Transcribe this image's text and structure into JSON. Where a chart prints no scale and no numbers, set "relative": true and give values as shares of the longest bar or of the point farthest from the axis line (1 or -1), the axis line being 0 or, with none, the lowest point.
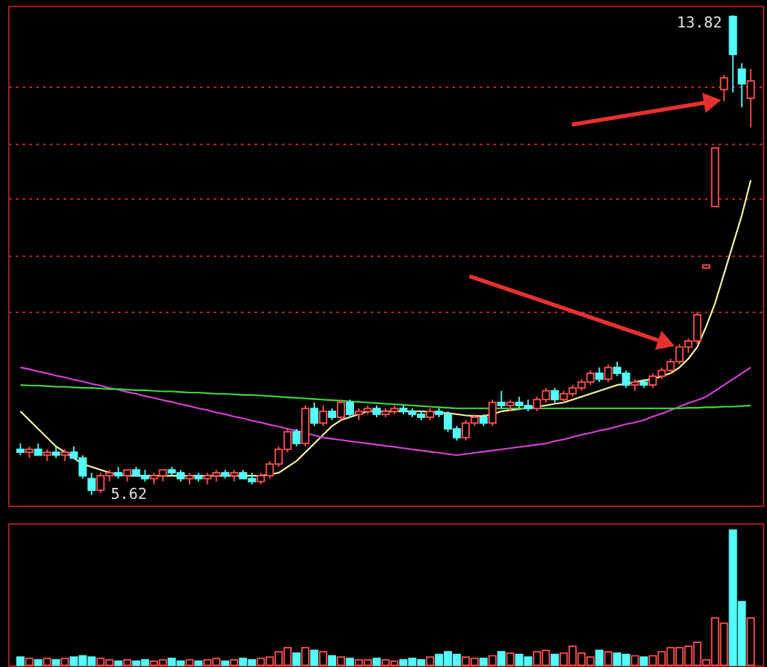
{
  "chart_data": [
    {
      "type": "candlestick",
      "categories": [
        null,
        null,
        null,
        null,
        null,
        null,
        null,
        null,
        null,
        null,
        null,
        null,
        null,
        null,
        null,
        null,
        null,
        null,
        null,
        null,
        null,
        null,
        null,
        null,
        null,
        null,
        null,
        null,
        null,
        null,
        null,
        null,
        null,
        null,
        null,
        null,
        null,
        null,
        null,
        null,
        null,
        null,
        null,
        null,
        null,
        null,
        null,
        null,
        null,
        null,
        null,
        null,
        null,
        null,
        null,
        null,
        null,
        null,
        null,
        null,
        null,
        null,
        null,
        null,
        null,
        null,
        null,
        null,
        null,
        null,
        null,
        null,
        null,
        null,
        null,
        null,
        null,
        null,
        null,
        null,
        null,
        null,
        null
      ],
      "ohlc": [
        [
          6.4,
          6.5,
          6.3,
          6.35
        ],
        [
          6.35,
          6.45,
          6.25,
          6.4
        ],
        [
          6.4,
          6.5,
          6.3,
          6.3
        ],
        [
          6.3,
          6.4,
          6.2,
          6.35
        ],
        [
          6.35,
          6.45,
          6.25,
          6.3
        ],
        [
          6.3,
          6.4,
          6.2,
          6.35
        ],
        [
          6.35,
          6.45,
          6.25,
          6.25
        ],
        [
          6.25,
          6.3,
          5.9,
          5.95
        ],
        [
          5.9,
          6.0,
          5.62,
          5.7
        ],
        [
          5.7,
          6.0,
          5.65,
          5.95
        ],
        [
          5.95,
          6.05,
          5.85,
          6.0
        ],
        [
          6.0,
          6.1,
          5.9,
          5.95
        ],
        [
          5.95,
          6.05,
          5.85,
          6.05
        ],
        [
          6.05,
          6.1,
          5.95,
          5.95
        ],
        [
          5.95,
          6.05,
          5.85,
          5.9
        ],
        [
          5.9,
          6.0,
          5.8,
          5.95
        ],
        [
          5.95,
          6.05,
          5.85,
          6.05
        ],
        [
          6.05,
          6.1,
          5.95,
          6.0
        ],
        [
          6.0,
          6.05,
          5.85,
          5.9
        ],
        [
          5.9,
          6.0,
          5.8,
          5.95
        ],
        [
          5.95,
          6.0,
          5.85,
          5.9
        ],
        [
          5.9,
          6.0,
          5.8,
          5.95
        ],
        [
          5.95,
          6.05,
          5.85,
          6.0
        ],
        [
          6.0,
          6.05,
          5.9,
          5.95
        ],
        [
          5.95,
          6.05,
          5.85,
          6.0
        ],
        [
          6.0,
          6.05,
          5.9,
          5.9
        ],
        [
          5.9,
          6.0,
          5.8,
          5.85
        ],
        [
          5.85,
          6.0,
          5.8,
          5.95
        ],
        [
          5.95,
          6.2,
          5.9,
          6.15
        ],
        [
          6.15,
          6.45,
          6.1,
          6.4
        ],
        [
          6.4,
          6.75,
          6.35,
          6.7
        ],
        [
          6.7,
          6.75,
          6.45,
          6.5
        ],
        [
          6.5,
          7.15,
          6.45,
          7.1
        ],
        [
          7.1,
          7.2,
          6.8,
          6.85
        ],
        [
          6.85,
          7.15,
          6.8,
          7.05
        ],
        [
          7.05,
          7.1,
          6.9,
          6.95
        ],
        [
          6.95,
          7.25,
          6.9,
          7.2
        ],
        [
          7.2,
          7.25,
          6.95,
          7.0
        ],
        [
          7.0,
          7.1,
          6.9,
          7.05
        ],
        [
          7.05,
          7.15,
          7.0,
          7.1
        ],
        [
          7.1,
          7.15,
          6.95,
          7.0
        ],
        [
          7.0,
          7.1,
          6.95,
          7.05
        ],
        [
          7.05,
          7.15,
          7.0,
          7.1
        ],
        [
          7.1,
          7.15,
          7.0,
          7.05
        ],
        [
          7.05,
          7.1,
          6.95,
          7.0
        ],
        [
          7.0,
          7.05,
          6.9,
          6.95
        ],
        [
          6.95,
          7.1,
          6.9,
          7.05
        ],
        [
          7.05,
          7.1,
          6.95,
          7.0
        ],
        [
          7.0,
          7.05,
          6.7,
          6.75
        ],
        [
          6.75,
          6.8,
          6.55,
          6.6
        ],
        [
          6.6,
          6.9,
          6.55,
          6.85
        ],
        [
          6.85,
          7.0,
          6.8,
          6.95
        ],
        [
          6.95,
          7.0,
          6.8,
          6.85
        ],
        [
          6.85,
          7.25,
          6.8,
          7.2
        ],
        [
          7.2,
          7.4,
          7.1,
          7.15
        ],
        [
          7.15,
          7.25,
          7.05,
          7.2
        ],
        [
          7.2,
          7.3,
          7.1,
          7.15
        ],
        [
          7.15,
          7.25,
          7.05,
          7.1
        ],
        [
          7.1,
          7.3,
          7.05,
          7.25
        ],
        [
          7.25,
          7.45,
          7.2,
          7.4
        ],
        [
          7.4,
          7.45,
          7.2,
          7.25
        ],
        [
          7.25,
          7.4,
          7.2,
          7.35
        ],
        [
          7.35,
          7.5,
          7.3,
          7.45
        ],
        [
          7.45,
          7.6,
          7.4,
          7.55
        ],
        [
          7.55,
          7.75,
          7.5,
          7.7
        ],
        [
          7.7,
          7.8,
          7.55,
          7.6
        ],
        [
          7.6,
          7.85,
          7.55,
          7.8
        ],
        [
          7.8,
          7.9,
          7.65,
          7.7
        ],
        [
          7.7,
          7.75,
          7.45,
          7.5
        ],
        [
          7.5,
          7.6,
          7.4,
          7.55
        ],
        [
          7.55,
          7.6,
          7.45,
          7.5
        ],
        [
          7.5,
          7.7,
          7.45,
          7.65
        ],
        [
          7.65,
          7.8,
          7.6,
          7.75
        ],
        [
          7.75,
          7.95,
          7.7,
          7.9
        ],
        [
          7.9,
          8.2,
          7.85,
          8.15
        ],
        [
          8.15,
          8.3,
          8.05,
          8.25
        ],
        [
          8.25,
          8.75,
          8.2,
          8.7
        ],
        [
          9.5,
          9.55,
          9.5,
          9.55
        ],
        [
          10.55,
          11.55,
          10.55,
          11.55
        ],
        [
          12.55,
          12.8,
          12.35,
          12.75
        ],
        [
          13.8,
          13.82,
          12.5,
          13.15
        ],
        [
          12.9,
          13.0,
          12.25,
          12.65
        ],
        [
          12.4,
          12.9,
          11.9,
          12.7
        ]
      ],
      "series": [
        {
          "type": "line",
          "color": "#f0f0a0",
          "values": [
            7.05,
            6.9,
            6.75,
            6.6,
            6.45,
            6.35,
            6.25,
            6.15,
            6.1,
            6.05,
            6.0,
            5.97,
            5.95,
            5.95,
            5.95,
            5.95,
            5.95,
            5.95,
            5.95,
            5.95,
            5.95,
            5.95,
            5.95,
            5.95,
            5.95,
            5.95,
            5.95,
            5.95,
            5.97,
            6.0,
            6.1,
            6.2,
            6.35,
            6.5,
            6.65,
            6.8,
            6.9,
            6.95,
            7.0,
            7.05,
            7.05,
            7.05,
            7.05,
            7.05,
            7.05,
            7.05,
            7.04,
            7.03,
            7.02,
            7.0,
            6.98,
            6.97,
            6.97,
            7.0,
            7.05,
            7.07,
            7.09,
            7.11,
            7.13,
            7.15,
            7.18,
            7.2,
            7.25,
            7.3,
            7.35,
            7.4,
            7.45,
            7.5,
            7.52,
            7.55,
            7.58,
            7.6,
            7.65,
            7.7,
            7.8,
            7.95,
            8.15,
            8.5,
            8.9,
            9.4,
            9.9,
            10.4,
            11.0
          ]
        },
        {
          "type": "line",
          "color": "#d040d0",
          "values": [
            7.8,
            7.77,
            7.73,
            7.7,
            7.66,
            7.63,
            7.59,
            7.56,
            7.52,
            7.49,
            7.45,
            7.42,
            7.38,
            7.35,
            7.31,
            7.28,
            7.24,
            7.21,
            7.17,
            7.14,
            7.1,
            7.07,
            7.03,
            7.0,
            6.96,
            6.93,
            6.89,
            6.86,
            6.82,
            6.79,
            6.75,
            6.72,
            6.68,
            6.64,
            6.6,
            6.58,
            6.56,
            6.54,
            6.52,
            6.5,
            6.48,
            6.46,
            6.44,
            6.42,
            6.4,
            6.38,
            6.36,
            6.34,
            6.32,
            6.3,
            6.32,
            6.34,
            6.36,
            6.38,
            6.4,
            6.42,
            6.44,
            6.46,
            6.48,
            6.5,
            6.54,
            6.57,
            6.61,
            6.65,
            6.68,
            6.72,
            6.75,
            6.79,
            6.83,
            6.86,
            6.9,
            6.96,
            7.01,
            7.07,
            7.13,
            7.19,
            7.24,
            7.3,
            7.4,
            7.5,
            7.6,
            7.7,
            7.8
          ]
        },
        {
          "type": "line",
          "color": "#40d040",
          "values": [
            7.5,
            7.49,
            7.49,
            7.48,
            7.47,
            7.47,
            7.46,
            7.45,
            7.45,
            7.44,
            7.43,
            7.43,
            7.42,
            7.41,
            7.41,
            7.4,
            7.39,
            7.39,
            7.38,
            7.37,
            7.37,
            7.36,
            7.35,
            7.35,
            7.34,
            7.33,
            7.33,
            7.32,
            7.31,
            7.3,
            7.29,
            7.28,
            7.27,
            7.26,
            7.25,
            7.24,
            7.23,
            7.22,
            7.21,
            7.2,
            7.19,
            7.18,
            7.17,
            7.16,
            7.15,
            7.14,
            7.13,
            7.12,
            7.11,
            7.1,
            7.1,
            7.1,
            7.1,
            7.1,
            7.1,
            7.1,
            7.1,
            7.1,
            7.1,
            7.1,
            7.1,
            7.1,
            7.1,
            7.1,
            7.1,
            7.1,
            7.1,
            7.1,
            7.1,
            7.1,
            7.1,
            7.1,
            7.1,
            7.1,
            7.1,
            7.11,
            7.11,
            7.12,
            7.12,
            7.13,
            7.13,
            7.14,
            7.15
          ]
        }
      ],
      "ylim": [
        5.44,
        13.98
      ],
      "yticks": [
        {
          "value": 8.76,
          "label": null
        },
        {
          "value": 9.71,
          "label": null
        },
        {
          "value": 10.68,
          "label": null
        },
        {
          "value": 11.63,
          "label": null
        },
        {
          "value": 12.6,
          "label": null
        }
      ],
      "grid": "y",
      "annotations": [
        "13.82",
        "5.62"
      ]
    },
    {
      "type": "bar",
      "relative": true,
      "categories": [
        null,
        null,
        null,
        null,
        null,
        null,
        null,
        null,
        null,
        null,
        null,
        null,
        null,
        null,
        null,
        null,
        null,
        null,
        null,
        null,
        null,
        null,
        null,
        null,
        null,
        null,
        null,
        null,
        null,
        null,
        null,
        null,
        null,
        null,
        null,
        null,
        null,
        null,
        null,
        null,
        null,
        null,
        null,
        null,
        null,
        null,
        null,
        null,
        null,
        null,
        null,
        null,
        null,
        null,
        null,
        null,
        null,
        null,
        null,
        null,
        null,
        null,
        null,
        null,
        null,
        null,
        null,
        null,
        null,
        null,
        null,
        null,
        null,
        null,
        null,
        null,
        null,
        null,
        null,
        null,
        null,
        null,
        null
      ],
      "values": [
        0.06,
        0.05,
        0.04,
        0.05,
        0.04,
        0.05,
        0.06,
        0.07,
        0.06,
        0.05,
        0.04,
        0.03,
        0.04,
        0.03,
        0.04,
        0.03,
        0.04,
        0.05,
        0.03,
        0.04,
        0.03,
        0.04,
        0.05,
        0.03,
        0.04,
        0.05,
        0.04,
        0.05,
        0.06,
        0.1,
        0.13,
        0.09,
        0.13,
        0.11,
        0.1,
        0.07,
        0.06,
        0.05,
        0.04,
        0.04,
        0.05,
        0.04,
        0.03,
        0.04,
        0.05,
        0.04,
        0.06,
        0.08,
        0.1,
        0.08,
        0.06,
        0.05,
        0.05,
        0.07,
        0.1,
        0.09,
        0.08,
        0.06,
        0.1,
        0.11,
        0.08,
        0.09,
        0.14,
        0.09,
        0.06,
        0.11,
        0.1,
        0.09,
        0.08,
        0.07,
        0.06,
        0.07,
        0.1,
        0.13,
        0.13,
        0.14,
        0.17,
        0.04,
        0.35,
        0.31,
        1,
        0.47,
        0.35
      ],
      "colors": [
        "#54fcfc",
        "#ff5050",
        "#54fcfc",
        "#ff5050",
        "#54fcfc",
        "#ff5050",
        "#54fcfc",
        "#54fcfc",
        "#54fcfc",
        "#ff5050",
        "#ff5050",
        "#54fcfc",
        "#ff5050",
        "#54fcfc",
        "#54fcfc",
        "#ff5050",
        "#ff5050",
        "#54fcfc",
        "#54fcfc",
        "#ff5050",
        "#54fcfc",
        "#ff5050",
        "#ff5050",
        "#54fcfc",
        "#ff5050",
        "#54fcfc",
        "#54fcfc",
        "#ff5050",
        "#ff5050",
        "#ff5050",
        "#ff5050",
        "#54fcfc",
        "#ff5050",
        "#54fcfc",
        "#ff5050",
        "#54fcfc",
        "#ff5050",
        "#54fcfc",
        "#ff5050",
        "#ff5050",
        "#54fcfc",
        "#ff5050",
        "#ff5050",
        "#54fcfc",
        "#54fcfc",
        "#54fcfc",
        "#ff5050",
        "#54fcfc",
        "#54fcfc",
        "#54fcfc",
        "#ff5050",
        "#ff5050",
        "#54fcfc",
        "#ff5050",
        "#54fcfc",
        "#ff5050",
        "#54fcfc",
        "#54fcfc",
        "#ff5050",
        "#ff5050",
        "#54fcfc",
        "#ff5050",
        "#ff5050",
        "#ff5050",
        "#ff5050",
        "#54fcfc",
        "#ff5050",
        "#54fcfc",
        "#54fcfc",
        "#ff5050",
        "#54fcfc",
        "#ff5050",
        "#ff5050",
        "#ff5050",
        "#ff5050",
        "#ff5050",
        "#ff5050",
        "#ff5050",
        "#ff5050",
        "#ff5050",
        "#54fcfc",
        "#54fcfc",
        "#ff5050"
      ]
    }
  ]
}
